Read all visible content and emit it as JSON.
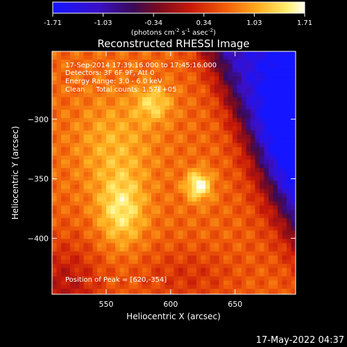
{
  "chart_data": {
    "type": "heatmap",
    "title": "Reconstructed RHESSI Image",
    "xlabel": "Heliocentric X (arcsec)",
    "ylabel": "Heliocentric Y (arcsec)",
    "colorbar": {
      "min": -1.71,
      "max": 1.71,
      "ticks": [
        "-1.71",
        "-1.03",
        "-0.34",
        "0.34",
        "1.03",
        "1.71"
      ],
      "unit_base": "(photons cm",
      "unit_exp1": "-2",
      "unit_mid": " s",
      "unit_exp2": "-1",
      "unit_mid2": " asec",
      "unit_exp3": "-2",
      "unit_end": ")"
    },
    "x_ticks": [
      550,
      600,
      650
    ],
    "y_ticks": [
      -300,
      -350,
      -400
    ],
    "x_tick_labels": [
      "550",
      "600",
      "650"
    ],
    "y_tick_labels": [
      "−300",
      "−350",
      "−400"
    ],
    "xlim": [
      508,
      697
    ],
    "ylim": [
      -447,
      -243
    ],
    "peak": [
      620,
      -354
    ],
    "annotations": {
      "time_range": "17-Sep-2014 17:39:16.000 to 17:45:16.000",
      "detectors": "Detectors: 3F 6F 9F, Att 0",
      "energy": "Energy Range: 3.0 - 6.0 keV",
      "algorithm": "Clean     Total counts: 1.57E+05",
      "peak_label": "Position of Peak = [620,-354]"
    },
    "date_stamp": "17-May-2022 04:37"
  }
}
